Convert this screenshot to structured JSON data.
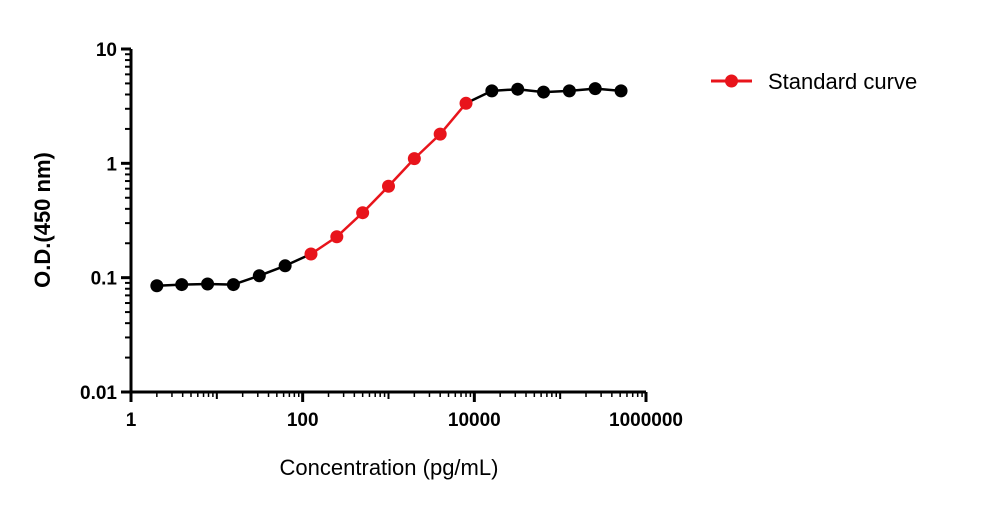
{
  "chart_data": {
    "type": "line",
    "xlabel": "Concentration (pg/mL)",
    "ylabel": "O.D.(450 nm)",
    "xscale": "log",
    "yscale": "log",
    "xlim": [
      1,
      1000000
    ],
    "ylim": [
      0.01,
      10
    ],
    "x_ticks": [
      "1",
      "100",
      "10000",
      "1000000"
    ],
    "y_ticks": [
      "0.01",
      "0.1",
      "1",
      "10"
    ],
    "legend": {
      "placement": "top-right",
      "entries": [
        {
          "label": "Standard curve",
          "color": "#e8141b"
        }
      ]
    },
    "colors": {
      "standard": "#e8141b",
      "other": "#000000"
    },
    "series": [
      {
        "name": "Standard curve",
        "points": [
          {
            "x": 2,
            "y": 0.085,
            "standard": false
          },
          {
            "x": 3.9,
            "y": 0.087,
            "standard": false
          },
          {
            "x": 7.8,
            "y": 0.088,
            "standard": false
          },
          {
            "x": 15.6,
            "y": 0.087,
            "standard": false
          },
          {
            "x": 31.25,
            "y": 0.104,
            "standard": false
          },
          {
            "x": 62.5,
            "y": 0.127,
            "standard": false
          },
          {
            "x": 125,
            "y": 0.161,
            "standard": true
          },
          {
            "x": 250,
            "y": 0.228,
            "standard": true
          },
          {
            "x": 500,
            "y": 0.37,
            "standard": true
          },
          {
            "x": 1000,
            "y": 0.63,
            "standard": true
          },
          {
            "x": 2000,
            "y": 1.1,
            "standard": true
          },
          {
            "x": 4000,
            "y": 1.8,
            "standard": true
          },
          {
            "x": 8000,
            "y": 3.35,
            "standard": true
          },
          {
            "x": 16000,
            "y": 4.3,
            "standard": false
          },
          {
            "x": 32000,
            "y": 4.45,
            "standard": false
          },
          {
            "x": 64000,
            "y": 4.2,
            "standard": false
          },
          {
            "x": 128000,
            "y": 4.3,
            "standard": false
          },
          {
            "x": 256000,
            "y": 4.5,
            "standard": false
          },
          {
            "x": 512000,
            "y": 4.3,
            "standard": false
          }
        ]
      }
    ]
  }
}
